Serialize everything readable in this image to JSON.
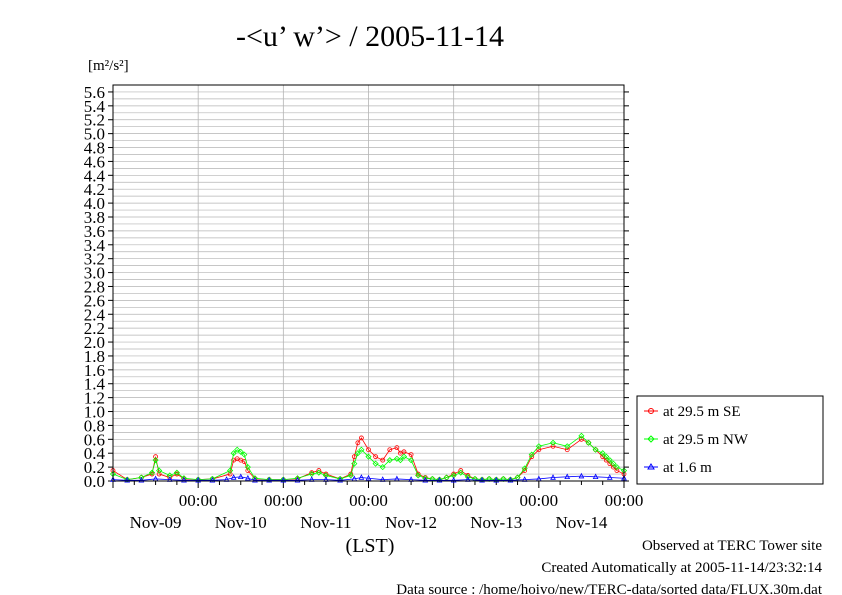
{
  "chart_data": {
    "type": "line",
    "title": "-<u’ w’> / 2005-11-14",
    "ylabel": "[m²/s²]",
    "xlabel": "(LST)",
    "ylim": [
      0.0,
      5.7
    ],
    "yticks": [
      "0.0",
      "0.2",
      "0.4",
      "0.6",
      "0.8",
      "1.0",
      "1.2",
      "1.4",
      "1.6",
      "1.8",
      "2.0",
      "2.2",
      "2.4",
      "2.6",
      "2.8",
      "3.0",
      "3.2",
      "3.4",
      "3.6",
      "3.8",
      "4.0",
      "4.2",
      "4.4",
      "4.6",
      "4.8",
      "5.0",
      "5.2",
      "5.4",
      "5.6"
    ],
    "xlim_hours": [
      0,
      144
    ],
    "xticks": [
      {
        "hour": 24,
        "time": "00:00",
        "date": "Nov-09"
      },
      {
        "hour": 48,
        "time": "00:00",
        "date": "Nov-10"
      },
      {
        "hour": 72,
        "time": "00:00",
        "date": "Nov-11"
      },
      {
        "hour": 96,
        "time": "00:00",
        "date": "Nov-12"
      },
      {
        "hour": 120,
        "time": "00:00",
        "date": "Nov-13"
      },
      {
        "hour": 144,
        "time": "00:00",
        "date": "Nov-14"
      }
    ],
    "legend_position": "outside-right",
    "grid": true,
    "series": [
      {
        "name": "at 29.5 m SE",
        "color": "#ff0000",
        "marker": "circle",
        "x": [
          0,
          4,
          8,
          11,
          12,
          13,
          16,
          18,
          20,
          24,
          28,
          33,
          34,
          35,
          36,
          37,
          38,
          40,
          44,
          48,
          52,
          56,
          58,
          60,
          64,
          67,
          68,
          69,
          70,
          72,
          74,
          76,
          78,
          80,
          81,
          82,
          84,
          86,
          88,
          90,
          92,
          94,
          96,
          98,
          100,
          102,
          104,
          106,
          108,
          110,
          112,
          114,
          116,
          118,
          120,
          124,
          128,
          132,
          134,
          136,
          138,
          139,
          140,
          141,
          142,
          144
        ],
        "y": [
          0.15,
          0.02,
          0.05,
          0.1,
          0.35,
          0.1,
          0.05,
          0.1,
          0.03,
          0.02,
          0.03,
          0.1,
          0.3,
          0.32,
          0.3,
          0.28,
          0.15,
          0.03,
          0.02,
          0.02,
          0.03,
          0.12,
          0.15,
          0.1,
          0.03,
          0.1,
          0.35,
          0.55,
          0.62,
          0.45,
          0.35,
          0.3,
          0.45,
          0.48,
          0.4,
          0.42,
          0.38,
          0.1,
          0.05,
          0.03,
          0.02,
          0.05,
          0.1,
          0.15,
          0.08,
          0.03,
          0.02,
          0.03,
          0.02,
          0.03,
          0.02,
          0.05,
          0.15,
          0.35,
          0.45,
          0.5,
          0.45,
          0.6,
          0.55,
          0.45,
          0.35,
          0.3,
          0.25,
          0.2,
          0.15,
          0.1
        ]
      },
      {
        "name": "at 29.5 m NW",
        "color": "#00ff00",
        "marker": "diamond",
        "x": [
          0,
          4,
          8,
          11,
          12,
          13,
          16,
          18,
          20,
          24,
          28,
          33,
          34,
          35,
          36,
          37,
          38,
          40,
          44,
          48,
          52,
          56,
          58,
          60,
          64,
          67,
          68,
          69,
          70,
          72,
          74,
          76,
          78,
          80,
          81,
          82,
          84,
          86,
          88,
          90,
          92,
          94,
          96,
          98,
          100,
          102,
          104,
          106,
          108,
          110,
          112,
          114,
          116,
          118,
          120,
          124,
          128,
          132,
          134,
          136,
          138,
          139,
          140,
          141,
          142,
          144
        ],
        "y": [
          0.1,
          0.02,
          0.05,
          0.12,
          0.3,
          0.15,
          0.08,
          0.12,
          0.04,
          0.02,
          0.03,
          0.15,
          0.4,
          0.45,
          0.42,
          0.38,
          0.2,
          0.04,
          0.02,
          0.02,
          0.04,
          0.1,
          0.12,
          0.08,
          0.03,
          0.08,
          0.25,
          0.4,
          0.45,
          0.35,
          0.25,
          0.2,
          0.3,
          0.32,
          0.3,
          0.35,
          0.3,
          0.08,
          0.04,
          0.03,
          0.02,
          0.05,
          0.08,
          0.12,
          0.06,
          0.03,
          0.02,
          0.03,
          0.02,
          0.03,
          0.02,
          0.05,
          0.18,
          0.38,
          0.5,
          0.55,
          0.5,
          0.65,
          0.55,
          0.45,
          0.4,
          0.35,
          0.3,
          0.25,
          0.2,
          0.15
        ]
      },
      {
        "name": "at 1.6 m",
        "color": "#0000ff",
        "marker": "triangle",
        "x": [
          0,
          4,
          8,
          12,
          16,
          20,
          24,
          28,
          32,
          34,
          36,
          38,
          40,
          44,
          48,
          52,
          56,
          60,
          64,
          68,
          70,
          72,
          76,
          80,
          84,
          88,
          92,
          96,
          100,
          104,
          108,
          112,
          116,
          120,
          124,
          128,
          132,
          136,
          140,
          144
        ],
        "y": [
          0.02,
          0.01,
          0.01,
          0.03,
          0.02,
          0.01,
          0.01,
          0.01,
          0.02,
          0.05,
          0.06,
          0.04,
          0.01,
          0.01,
          0.01,
          0.01,
          0.02,
          0.02,
          0.01,
          0.03,
          0.05,
          0.04,
          0.02,
          0.03,
          0.02,
          0.01,
          0.01,
          0.01,
          0.02,
          0.01,
          0.01,
          0.01,
          0.02,
          0.03,
          0.05,
          0.06,
          0.07,
          0.06,
          0.05,
          0.04
        ]
      }
    ]
  },
  "footer": {
    "line1": "Observed at TERC Tower site",
    "line2": "Created Automatically at 2005-11-14/23:32:14",
    "line3": "Data source : /home/hoivo/new/TERC-data/sorted  data/FLUX.30m.dat"
  }
}
